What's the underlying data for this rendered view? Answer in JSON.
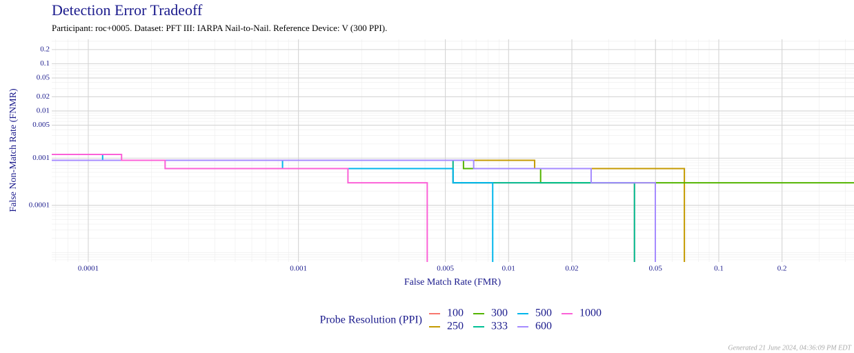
{
  "chart_data": {
    "type": "line",
    "line_style": "step",
    "title": "Detection Error Tradeoff",
    "subtitle": "Participant: roc+0005. Dataset: PFT III: IARPA Nail-to-Nail. Reference Device: V (300 PPI).",
    "x_label": "False Match Rate (FMR)",
    "y_label": "False Non-Match Rate (FNMR)",
    "xscale": "log",
    "yscale": "log",
    "grid": true,
    "xlim": [
      6.7e-05,
      0.44
    ],
    "ylim": [
      6.3e-06,
      0.33
    ],
    "xticks": [
      0.0001,
      0.001,
      0.005,
      0.01,
      0.02,
      0.05,
      0.1,
      0.2
    ],
    "yticks": [
      0.2,
      0.1,
      0.05,
      0.02,
      0.01,
      0.005,
      0.001,
      0.0001
    ],
    "legend_title": "Probe Resolution (PPI)",
    "legend_position": "bottom",
    "series": [
      {
        "name": "100",
        "color": "#F8766D",
        "x": [
          6.7e-05,
          0.00544,
          0.0397,
          0.0397
        ],
        "values": [
          0.0009,
          0.0003,
          0.0003,
          1e-06
        ]
      },
      {
        "name": "250",
        "color": "#C49A00",
        "x": [
          6.7e-05,
          0.0133,
          0.0686
        ],
        "values": [
          0.0009,
          0.0006,
          1e-06
        ]
      },
      {
        "name": "300",
        "color": "#53B400",
        "x": [
          6.7e-05,
          0.0061,
          0.0142,
          0.44
        ],
        "values": [
          0.0009,
          0.0006,
          0.0003,
          0.0003
        ]
      },
      {
        "name": "333",
        "color": "#00C094",
        "x": [
          6.7e-05,
          0.00544,
          0.0397
        ],
        "values": [
          0.0009,
          0.0003,
          1e-06
        ]
      },
      {
        "name": "500",
        "color": "#00B6EB",
        "x": [
          6.7e-05,
          0.000117,
          0.00084,
          0.00544,
          0.0084
        ],
        "values": [
          0.0012,
          0.0009,
          0.0006,
          0.0003,
          1e-06
        ]
      },
      {
        "name": "600",
        "color": "#A58AFF",
        "x": [
          6.7e-05,
          0.00682,
          0.0247,
          0.0499
        ],
        "values": [
          0.0009,
          0.0006,
          0.0003,
          1e-06
        ]
      },
      {
        "name": "1000",
        "color": "#FB61D7",
        "x": [
          6.7e-05,
          0.000144,
          0.000232,
          0.00172,
          0.0041
        ],
        "values": [
          0.0012,
          0.0009,
          0.0006,
          0.0003,
          1e-06
        ]
      }
    ],
    "caption": "Generated 21 June 2024, 04:36:09 PM EDT"
  }
}
